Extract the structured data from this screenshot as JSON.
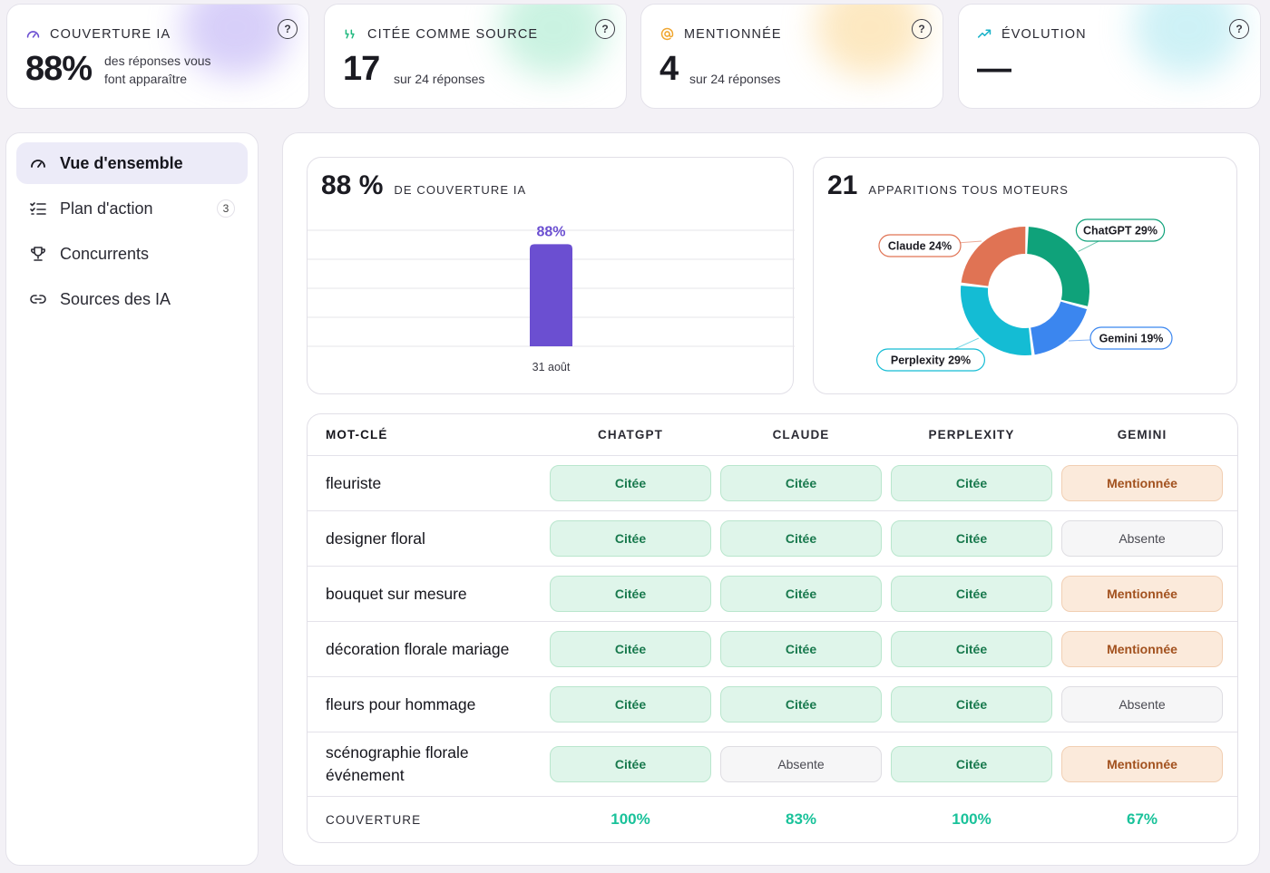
{
  "kpis": [
    {
      "label": "COUVERTURE IA",
      "value": "88%",
      "sub_line1": "des réponses vous",
      "sub_line2": "font apparaître",
      "icon": "gauge-icon",
      "color": "#6b4fd1"
    },
    {
      "label": "CITÉE COMME SOURCE",
      "value": "17",
      "sub": "sur 24 réponses",
      "icon": "quote-icon",
      "color": "#22b980"
    },
    {
      "label": "MENTIONNÉE",
      "value": "4",
      "sub": "sur 24 réponses",
      "icon": "at-icon",
      "color": "#f0a732"
    },
    {
      "label": "ÉVOLUTION",
      "value": "—",
      "icon": "trend-up-icon",
      "color": "#1bb3c9"
    }
  ],
  "help_glyph": "?",
  "sidebar": {
    "items": [
      {
        "label": "Vue d'ensemble",
        "icon": "gauge-icon",
        "active": true
      },
      {
        "label": "Plan d'action",
        "icon": "checklist-icon",
        "badge": "3"
      },
      {
        "label": "Concurrents",
        "icon": "trophy-icon"
      },
      {
        "label": "Sources des IA",
        "icon": "link-icon"
      }
    ]
  },
  "coverage_card": {
    "value": "88 %",
    "label": "DE COUVERTURE IA"
  },
  "engines_card": {
    "value": "21",
    "label": "APPARITIONS TOUS MOTEURS"
  },
  "chart_data": [
    {
      "type": "bar",
      "categories": [
        "31 août"
      ],
      "values": [
        88
      ],
      "data_labels": [
        "88%"
      ],
      "ylim": [
        0,
        100
      ],
      "grid": true,
      "colors": [
        "#6b4fd1"
      ]
    },
    {
      "type": "pie",
      "donut": true,
      "categories": [
        "ChatGPT",
        "Gemini",
        "Perplexity",
        "Claude"
      ],
      "values": [
        29,
        19,
        29,
        24
      ],
      "data_labels": [
        "ChatGPT 29%",
        "Gemini 19%",
        "Perplexity 29%",
        "Claude 24%"
      ],
      "colors": [
        "#0fa27a",
        "#3b86ef",
        "#14bcd4",
        "#e07354"
      ]
    }
  ],
  "table": {
    "headers": {
      "keyword": "MOT-CLÉ",
      "engines": [
        "CHATGPT",
        "CLAUDE",
        "PERPLEXITY",
        "GEMINI"
      ]
    },
    "rows": [
      {
        "keyword": "fleuriste",
        "cells": [
          "Citée",
          "Citée",
          "Citée",
          "Mentionnée"
        ]
      },
      {
        "keyword": "designer floral",
        "cells": [
          "Citée",
          "Citée",
          "Citée",
          "Absente"
        ]
      },
      {
        "keyword": "bouquet sur mesure",
        "cells": [
          "Citée",
          "Citée",
          "Citée",
          "Mentionnée"
        ]
      },
      {
        "keyword": "décoration florale mariage",
        "cells": [
          "Citée",
          "Citée",
          "Citée",
          "Mentionnée"
        ]
      },
      {
        "keyword": "fleurs pour hommage",
        "cells": [
          "Citée",
          "Citée",
          "Citée",
          "Absente"
        ]
      },
      {
        "keyword": "scénographie florale événement",
        "cells": [
          "Citée",
          "Absente",
          "Citée",
          "Mentionnée"
        ]
      }
    ],
    "footer": {
      "label": "COUVERTURE",
      "values": [
        "100%",
        "83%",
        "100%",
        "67%"
      ]
    }
  }
}
